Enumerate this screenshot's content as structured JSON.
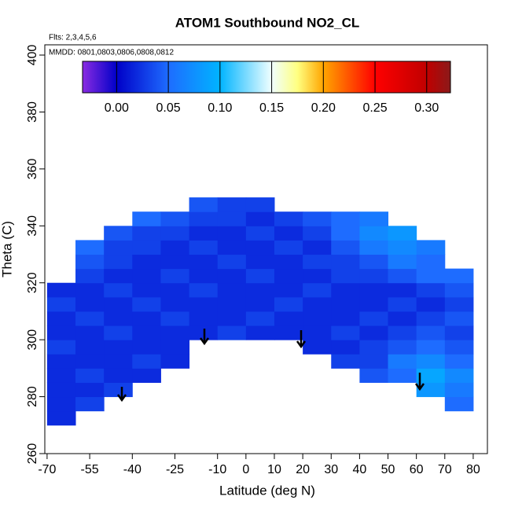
{
  "chart_data": {
    "type": "heatmap",
    "title": "ATOM1 Southbound NO2_CL",
    "flights": "Flts: 2,3,4,5,6",
    "dates": "MMDD: 0801,0803,0806,0808,0812",
    "xlabel": "Latitude (deg N)",
    "ylabel": "Theta (C)",
    "xlim": [
      -70.8,
      85
    ],
    "ylim": [
      260,
      403.6
    ],
    "xticks": [
      -70,
      -55,
      -40,
      -25,
      -10,
      0,
      10,
      20,
      30,
      40,
      50,
      60,
      70,
      80
    ],
    "yticks": [
      260,
      280,
      300,
      320,
      340,
      360,
      380,
      400
    ],
    "clim": [
      -0.033,
      0.323
    ],
    "cticks": [
      {
        "value": 0,
        "label": "0.00"
      },
      0.05,
      {
        "value": 0.1,
        "label": "0.10"
      },
      0.15,
      {
        "value": 0.2,
        "label": "0.20"
      },
      0.25,
      {
        "value": 0.3,
        "label": "0.30"
      }
    ],
    "colorscale": [
      [
        -0.033,
        "#8a2be2"
      ],
      [
        0,
        "#0000c8"
      ],
      [
        0.05,
        "#1e6cff"
      ],
      [
        0.1,
        "#00b4ff"
      ],
      [
        0.15,
        "#f0ffff"
      ],
      [
        0.175,
        "#ffff80"
      ],
      [
        0.2,
        "#ffa500"
      ],
      [
        0.25,
        "#ff0000"
      ],
      [
        0.3,
        "#c00000"
      ],
      [
        0.323,
        "#8b1a1a"
      ]
    ],
    "xbins": [
      -70,
      -60,
      -50,
      -40,
      -30,
      -20,
      -10,
      0,
      10,
      20,
      30,
      40,
      50,
      60,
      70,
      80
    ],
    "ybins": [
      265,
      270,
      275,
      280,
      285,
      290,
      295,
      300,
      305,
      310,
      315,
      320,
      325,
      330,
      335,
      340,
      345,
      350
    ],
    "z": [
      [
        null,
        null,
        null,
        null,
        null,
        null,
        null,
        null,
        null,
        null,
        null,
        null,
        null,
        null,
        null
      ],
      [
        0.02,
        null,
        null,
        null,
        null,
        null,
        null,
        null,
        null,
        null,
        null,
        null,
        null,
        null,
        null
      ],
      [
        0.02,
        0.03,
        null,
        null,
        null,
        null,
        null,
        null,
        null,
        null,
        null,
        null,
        null,
        null,
        0.05
      ],
      [
        0.02,
        0.02,
        0.03,
        null,
        null,
        null,
        null,
        null,
        null,
        null,
        null,
        null,
        null,
        0.08,
        0.06
      ],
      [
        0.02,
        0.03,
        0.02,
        0.02,
        null,
        null,
        null,
        null,
        null,
        null,
        null,
        0.04,
        0.05,
        0.09,
        0.07
      ],
      [
        0.02,
        0.02,
        0.02,
        0.03,
        0.02,
        null,
        null,
        null,
        null,
        null,
        0.03,
        0.03,
        0.06,
        0.07,
        0.05
      ],
      [
        0.03,
        0.02,
        0.02,
        0.02,
        0.02,
        null,
        null,
        null,
        null,
        0.02,
        0.02,
        0.03,
        0.04,
        0.05,
        0.04
      ],
      [
        0.02,
        0.02,
        0.03,
        0.02,
        0.02,
        0.02,
        0.03,
        0.02,
        0.02,
        0.02,
        0.03,
        0.02,
        0.03,
        0.04,
        0.03
      ],
      [
        0.02,
        0.03,
        0.02,
        0.02,
        0.03,
        0.02,
        0.02,
        0.03,
        0.02,
        0.02,
        0.02,
        0.03,
        0.02,
        0.03,
        0.04
      ],
      [
        0.03,
        0.02,
        0.02,
        0.03,
        0.02,
        0.02,
        0.02,
        0.02,
        0.03,
        0.02,
        0.02,
        0.02,
        0.03,
        0.02,
        0.03
      ],
      [
        0.02,
        0.02,
        0.03,
        0.02,
        0.02,
        0.03,
        0.02,
        0.02,
        0.02,
        0.03,
        0.02,
        0.02,
        0.02,
        0.03,
        0.04
      ],
      [
        null,
        0.03,
        0.02,
        0.02,
        0.03,
        0.02,
        0.02,
        0.03,
        0.02,
        0.02,
        0.03,
        0.03,
        0.04,
        0.05,
        0.05
      ],
      [
        null,
        0.04,
        0.03,
        0.02,
        0.02,
        0.02,
        0.03,
        0.02,
        0.02,
        0.03,
        0.03,
        0.04,
        0.06,
        0.05,
        null
      ],
      [
        null,
        0.05,
        0.03,
        0.03,
        0.02,
        0.03,
        0.02,
        0.02,
        0.03,
        0.02,
        0.04,
        0.06,
        0.07,
        0.06,
        null
      ],
      [
        null,
        null,
        0.04,
        0.03,
        0.03,
        0.02,
        0.02,
        0.03,
        0.02,
        0.03,
        0.05,
        0.07,
        0.08,
        null,
        null
      ],
      [
        null,
        null,
        null,
        0.05,
        0.04,
        0.03,
        0.03,
        0.02,
        0.03,
        0.04,
        0.05,
        0.06,
        null,
        null,
        null
      ],
      [
        null,
        null,
        null,
        null,
        null,
        0.04,
        0.03,
        0.03,
        null,
        null,
        null,
        null,
        null,
        null,
        null
      ]
    ]
  }
}
